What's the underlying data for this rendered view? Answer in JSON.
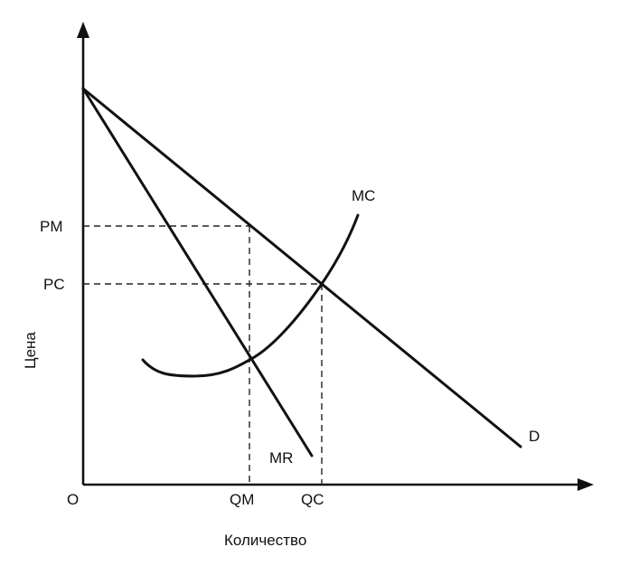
{
  "axes": {
    "origin_label": "O",
    "x_title": "Количество",
    "y_title": "Цена"
  },
  "curves": {
    "demand_label": "D",
    "marginal_revenue_label": "MR",
    "marginal_cost_label": "MC"
  },
  "price_levels": {
    "monopoly_price_label": "PM",
    "competitive_price_label": "PC"
  },
  "quantity_levels": {
    "monopoly_quantity_label": "QM",
    "competitive_quantity_label": "QC"
  },
  "colors": {
    "line": "#111111",
    "background": "#ffffff"
  }
}
